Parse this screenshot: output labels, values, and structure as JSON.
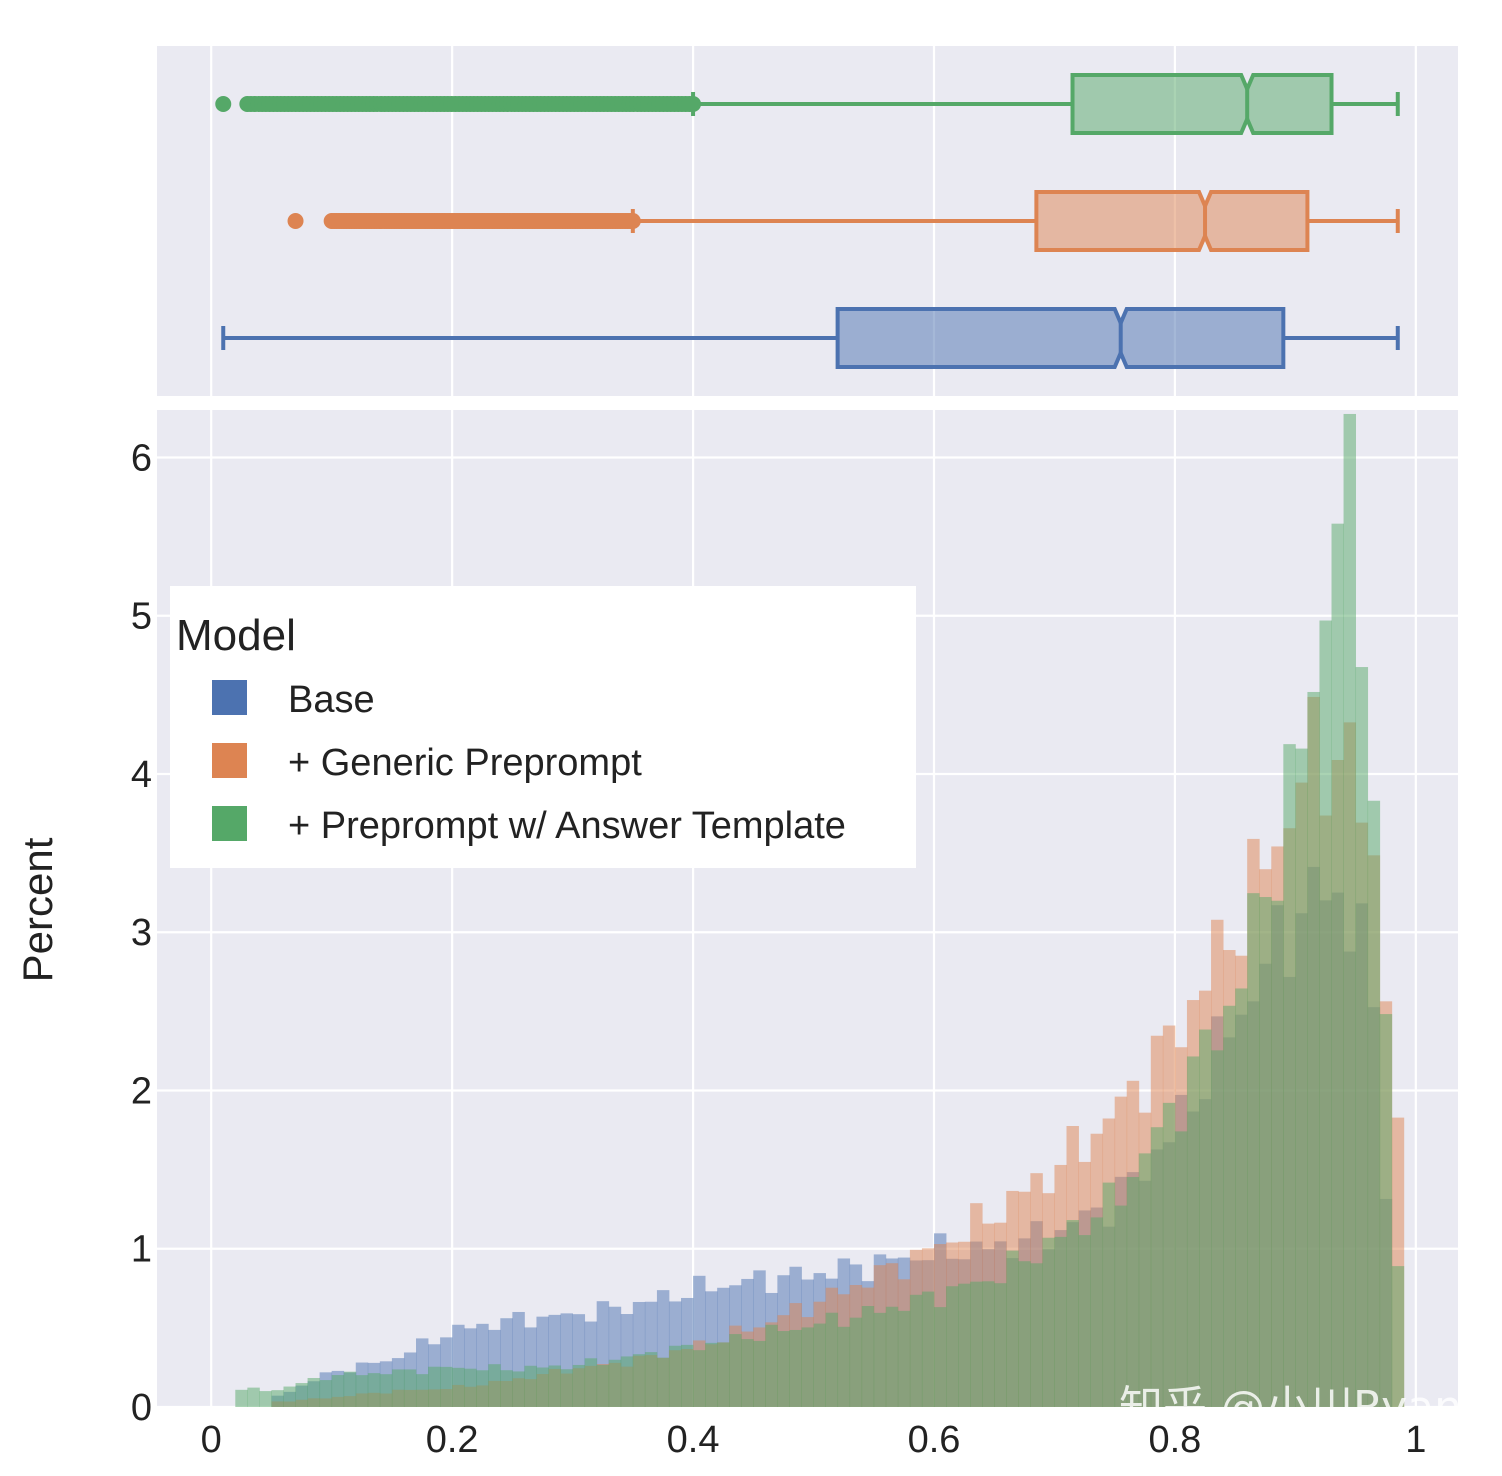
{
  "chart_data": {
    "type": "histogram",
    "ylabel": "Percent",
    "xlabel": "",
    "xlim": [
      -0.045,
      1.035
    ],
    "ylim": [
      0,
      6.3
    ],
    "x_ticks": [
      {
        "value": 0,
        "label": "0"
      },
      {
        "value": 0.2,
        "label": "0.2"
      },
      {
        "value": 0.4,
        "label": "0.4"
      },
      {
        "value": 0.6,
        "label": "0.6"
      },
      {
        "value": 0.8,
        "label": "0.8"
      },
      {
        "value": 1,
        "label": "1"
      }
    ],
    "y_ticks": [
      {
        "value": 0,
        "label": "0"
      },
      {
        "value": 1,
        "label": "1"
      },
      {
        "value": 2,
        "label": "2"
      },
      {
        "value": 3,
        "label": "3"
      },
      {
        "value": 4,
        "label": "4"
      },
      {
        "value": 5,
        "label": "5"
      },
      {
        "value": 6,
        "label": "6"
      }
    ],
    "grid": true,
    "legend": {
      "title": "Model",
      "placement": "upper-left"
    },
    "series": [
      {
        "name": "Base",
        "color": "#4c72b0",
        "box": {
          "min": 0.01,
          "q1": 0.52,
          "median": 0.755,
          "q3": 0.89,
          "max": 0.985,
          "outliers": []
        },
        "histogram": [
          {
            "x": 0.05,
            "y": 0.05
          },
          {
            "x": 0.1,
            "y": 0.22
          },
          {
            "x": 0.15,
            "y": 0.3
          },
          {
            "x": 0.2,
            "y": 0.48
          },
          {
            "x": 0.25,
            "y": 0.55
          },
          {
            "x": 0.3,
            "y": 0.58
          },
          {
            "x": 0.35,
            "y": 0.64
          },
          {
            "x": 0.4,
            "y": 0.74
          },
          {
            "x": 0.45,
            "y": 0.8
          },
          {
            "x": 0.5,
            "y": 0.84
          },
          {
            "x": 0.55,
            "y": 0.9
          },
          {
            "x": 0.6,
            "y": 0.98
          },
          {
            "x": 0.65,
            "y": 1.0
          },
          {
            "x": 0.7,
            "y": 1.1
          },
          {
            "x": 0.75,
            "y": 1.3
          },
          {
            "x": 0.8,
            "y": 1.75
          },
          {
            "x": 0.85,
            "y": 2.45
          },
          {
            "x": 0.9,
            "y": 3.1
          },
          {
            "x": 0.93,
            "y": 3.3
          },
          {
            "x": 0.96,
            "y": 2.9
          },
          {
            "x": 0.98,
            "y": 1.0
          }
        ]
      },
      {
        "name": "+ Generic Preprompt",
        "color": "#dd8452",
        "box": {
          "min": 0.35,
          "q1": 0.685,
          "median": 0.825,
          "q3": 0.91,
          "max": 0.985,
          "outliers": [
            0.07,
            0.1,
            0.11,
            0.12,
            0.13,
            0.15,
            0.18,
            0.2,
            0.22,
            0.25,
            0.28,
            0.3,
            0.32,
            0.34
          ]
        },
        "histogram": [
          {
            "x": 0.05,
            "y": 0.03
          },
          {
            "x": 0.1,
            "y": 0.06
          },
          {
            "x": 0.15,
            "y": 0.1
          },
          {
            "x": 0.2,
            "y": 0.12
          },
          {
            "x": 0.25,
            "y": 0.17
          },
          {
            "x": 0.3,
            "y": 0.24
          },
          {
            "x": 0.35,
            "y": 0.29
          },
          {
            "x": 0.4,
            "y": 0.38
          },
          {
            "x": 0.45,
            "y": 0.5
          },
          {
            "x": 0.5,
            "y": 0.65
          },
          {
            "x": 0.55,
            "y": 0.82
          },
          {
            "x": 0.6,
            "y": 1.0
          },
          {
            "x": 0.65,
            "y": 1.22
          },
          {
            "x": 0.7,
            "y": 1.5
          },
          {
            "x": 0.75,
            "y": 1.85
          },
          {
            "x": 0.8,
            "y": 2.35
          },
          {
            "x": 0.85,
            "y": 3.05
          },
          {
            "x": 0.88,
            "y": 3.5
          },
          {
            "x": 0.91,
            "y": 4.05
          },
          {
            "x": 0.94,
            "y": 4.2
          },
          {
            "x": 0.97,
            "y": 3.3
          },
          {
            "x": 0.99,
            "y": 1.2
          }
        ]
      },
      {
        "name": "+ Preprompt w/ Answer Template",
        "color": "#55a868",
        "box": {
          "min": 0.4,
          "q1": 0.715,
          "median": 0.86,
          "q3": 0.93,
          "max": 0.985,
          "outliers": [
            0.01,
            0.03,
            0.05,
            0.08,
            0.1,
            0.12,
            0.15,
            0.18,
            0.2,
            0.22,
            0.25,
            0.28,
            0.3,
            0.32,
            0.35,
            0.38
          ]
        },
        "histogram": [
          {
            "x": 0.02,
            "y": 0.12
          },
          {
            "x": 0.05,
            "y": 0.1
          },
          {
            "x": 0.1,
            "y": 0.2
          },
          {
            "x": 0.15,
            "y": 0.22
          },
          {
            "x": 0.2,
            "y": 0.25
          },
          {
            "x": 0.25,
            "y": 0.24
          },
          {
            "x": 0.3,
            "y": 0.26
          },
          {
            "x": 0.35,
            "y": 0.32
          },
          {
            "x": 0.4,
            "y": 0.38
          },
          {
            "x": 0.45,
            "y": 0.45
          },
          {
            "x": 0.5,
            "y": 0.52
          },
          {
            "x": 0.55,
            "y": 0.6
          },
          {
            "x": 0.6,
            "y": 0.7
          },
          {
            "x": 0.65,
            "y": 0.82
          },
          {
            "x": 0.7,
            "y": 1.05
          },
          {
            "x": 0.75,
            "y": 1.3
          },
          {
            "x": 0.8,
            "y": 1.9
          },
          {
            "x": 0.85,
            "y": 2.6
          },
          {
            "x": 0.88,
            "y": 3.4
          },
          {
            "x": 0.91,
            "y": 4.3
          },
          {
            "x": 0.94,
            "y": 5.95
          },
          {
            "x": 0.96,
            "y": 4.8
          },
          {
            "x": 0.98,
            "y": 1.5
          },
          {
            "x": 0.99,
            "y": 0.3
          }
        ]
      }
    ]
  },
  "watermark": {
    "text": "知乎 @小川Ryan"
  }
}
